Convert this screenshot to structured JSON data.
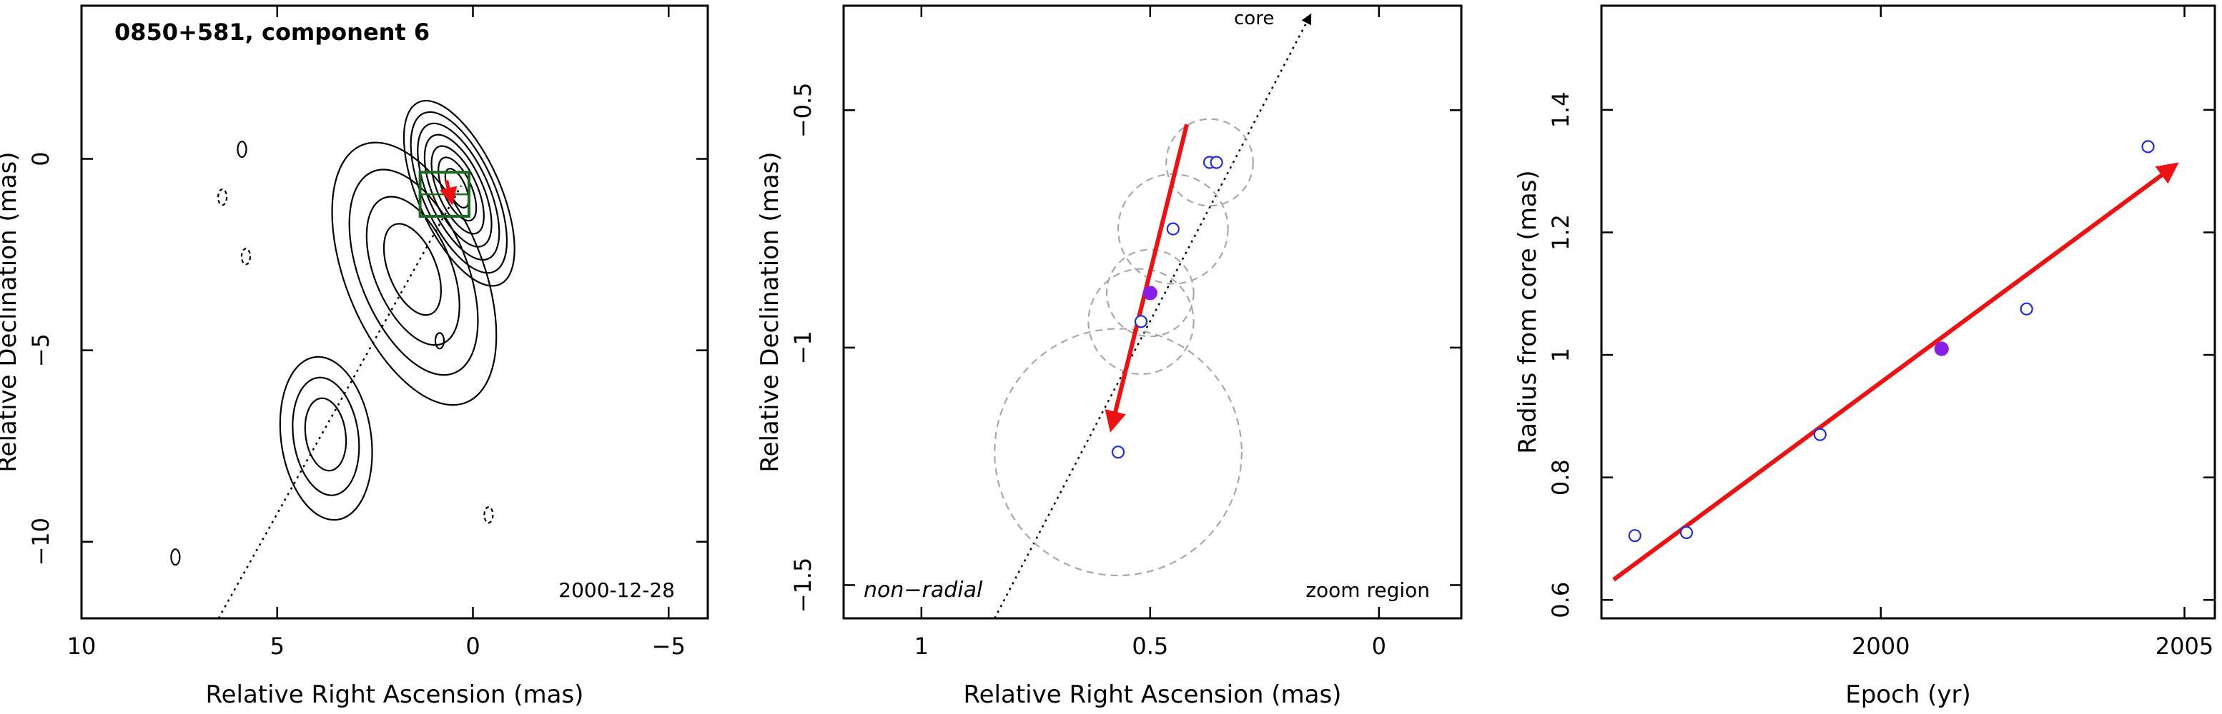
{
  "colors": {
    "contour": "#000000",
    "fit_arrow": "#ee1111",
    "open_marker": "#1f2ee0",
    "filled_marker": "#8a1fe8",
    "circle": "#a8a8a8",
    "box": "#176b1c"
  },
  "chart_data": [
    {
      "type": "contour",
      "title": "0850+581, component 6",
      "epoch_label": "2000-12-28",
      "xlabel": "Relative Right Ascension (mas)",
      "ylabel": "Relative Declination (mas)",
      "xlim": [
        10,
        -6
      ],
      "ylim": [
        -12,
        4
      ],
      "x_ticks": [
        10,
        5,
        0,
        -5
      ],
      "x_tick_labels": [
        "10",
        "5",
        "0",
        "−5"
      ],
      "y_ticks": [
        0,
        -5,
        -10
      ],
      "y_tick_labels": [
        "0",
        "−5",
        "−10"
      ],
      "grid": false,
      "jet_axis_line": [
        [
          6.5,
          -12
        ],
        [
          0.3,
          -0.7
        ]
      ],
      "zoom_box": {
        "x": [
          1.35,
          0.1
        ],
        "y": [
          -0.35,
          -1.5
        ]
      },
      "component_marker": [
        0.6,
        -0.9
      ],
      "contour_groups": [
        {
          "center": [
            0.35,
            -0.9
          ],
          "levels": 7
        },
        {
          "center": [
            1.5,
            -3.0
          ],
          "levels": 4
        },
        {
          "center": [
            3.75,
            -7.3
          ],
          "levels": 3
        }
      ],
      "isolated_contours": [
        {
          "center": [
            5.9,
            0.25
          ],
          "dashed": false
        },
        {
          "center": [
            6.4,
            -1.0
          ],
          "dashed": true
        },
        {
          "center": [
            5.8,
            -2.55
          ],
          "dashed": true
        },
        {
          "center": [
            0.85,
            -4.75
          ],
          "dashed": false
        },
        {
          "center": [
            -0.4,
            -9.3
          ],
          "dashed": true
        },
        {
          "center": [
            7.6,
            -10.4
          ],
          "dashed": false
        }
      ]
    },
    {
      "type": "scatter",
      "xlabel": "Relative Right Ascension (mas)",
      "ylabel": "Relative Declination (mas)",
      "xlim": [
        1.17,
        -0.18
      ],
      "ylim": [
        -1.57,
        -0.28
      ],
      "x_ticks": [
        1,
        0.5,
        0
      ],
      "x_tick_labels": [
        "1",
        "0.5",
        "0"
      ],
      "y_ticks": [
        -0.5,
        -1,
        -1.5
      ],
      "y_tick_labels": [
        "−0.5",
        "−1",
        "−1.5"
      ],
      "grid": false,
      "annotations": {
        "core": "core",
        "non_radial": "non−radial",
        "zoom_region": "zoom region"
      },
      "points": [
        {
          "x": 0.37,
          "y": -0.61,
          "filled": false,
          "err_radius": 0.095
        },
        {
          "x": 0.355,
          "y": -0.61,
          "filled": false,
          "err_radius": 0
        },
        {
          "x": 0.45,
          "y": -0.75,
          "filled": false,
          "err_radius": 0.12
        },
        {
          "x": 0.5,
          "y": -0.885,
          "filled": true,
          "err_radius": 0.095
        },
        {
          "x": 0.52,
          "y": -0.945,
          "filled": false,
          "err_radius": 0.115
        },
        {
          "x": 0.57,
          "y": -1.22,
          "filled": false,
          "err_radius": 0.27
        }
      ],
      "fit_arrow": {
        "from": [
          0.42,
          -0.53
        ],
        "to": [
          0.585,
          -1.17
        ]
      },
      "core_direction_line": {
        "from": [
          0.84,
          -1.57
        ],
        "to": [
          0.15,
          -0.3
        ]
      }
    },
    {
      "type": "scatter",
      "xlabel": "Epoch (yr)",
      "ylabel": "Radius from core (mas)",
      "xlim": [
        1995.4,
        2005.5
      ],
      "ylim": [
        0.57,
        1.57
      ],
      "x_ticks": [
        2000,
        2005
      ],
      "x_tick_labels": [
        "2000",
        "2005"
      ],
      "y_ticks": [
        0.6,
        0.8,
        1,
        1.2,
        1.4
      ],
      "y_tick_labels": [
        "0.6",
        "0.8",
        "1",
        "1.2",
        "1.4"
      ],
      "grid": false,
      "points": [
        {
          "x": 1995.95,
          "y": 0.705,
          "filled": false
        },
        {
          "x": 1996.8,
          "y": 0.71,
          "filled": false
        },
        {
          "x": 1999.0,
          "y": 0.87,
          "filled": false
        },
        {
          "x": 2001.0,
          "y": 1.01,
          "filled": true
        },
        {
          "x": 2002.4,
          "y": 1.075,
          "filled": false
        },
        {
          "x": 2004.4,
          "y": 1.34,
          "filled": false
        }
      ],
      "fit_arrow": {
        "from": [
          1995.6,
          0.633
        ],
        "to": [
          2004.85,
          1.31
        ]
      }
    }
  ]
}
